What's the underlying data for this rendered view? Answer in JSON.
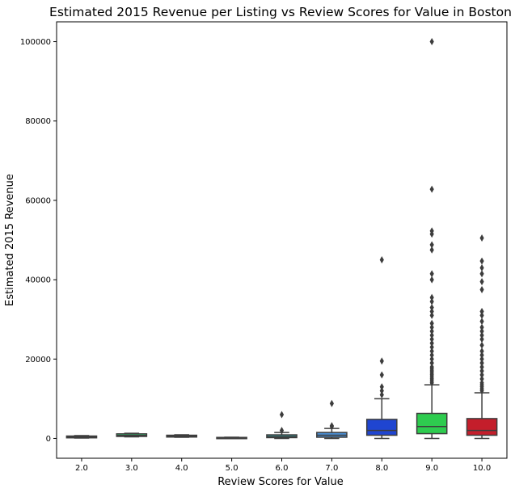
{
  "chart_data": {
    "type": "box",
    "title": "Estimated 2015 Revenue per Listing vs Review Scores for Value in Boston",
    "xlabel": "Review Scores for Value",
    "ylabel": "Estimated 2015 Revenue",
    "categories": [
      "2.0",
      "3.0",
      "4.0",
      "5.0",
      "6.0",
      "7.0",
      "8.0",
      "9.0",
      "10.0"
    ],
    "yticks": [
      0,
      20000,
      40000,
      60000,
      80000,
      100000
    ],
    "ylim": [
      -5000,
      105000
    ],
    "grid": false,
    "boxes": [
      {
        "category": "2.0",
        "q1": 150,
        "median": 350,
        "q3": 600,
        "whisker_low": 100,
        "whisker_high": 700,
        "color": "#3a86d1",
        "outliers": []
      },
      {
        "category": "3.0",
        "q1": 500,
        "median": 750,
        "q3": 1150,
        "whisker_low": 400,
        "whisker_high": 1300,
        "color": "#2ecc71",
        "outliers": []
      },
      {
        "category": "4.0",
        "q1": 350,
        "median": 550,
        "q3": 800,
        "whisker_low": 300,
        "whisker_high": 900,
        "color": "#3a86d1",
        "outliers": []
      },
      {
        "category": "5.0",
        "q1": 50,
        "median": 150,
        "q3": 250,
        "whisker_low": 0,
        "whisker_high": 300,
        "color": "#7f5c9a",
        "outliers": []
      },
      {
        "category": "6.0",
        "q1": 200,
        "median": 450,
        "q3": 900,
        "whisker_low": 0,
        "whisker_high": 1500,
        "color": "#2e9fa0",
        "outliers": [
          2000,
          6000
        ]
      },
      {
        "category": "7.0",
        "q1": 300,
        "median": 800,
        "q3": 1500,
        "whisker_low": 0,
        "whisker_high": 2500,
        "color": "#4a90d9",
        "outliers": [
          3000,
          3200,
          8800
        ]
      },
      {
        "category": "8.0",
        "q1": 800,
        "median": 2000,
        "q3": 4800,
        "whisker_low": 0,
        "whisker_high": 10000,
        "color": "#1f45d1",
        "outliers": [
          11000,
          12000,
          13000,
          16000,
          19500,
          45000
        ]
      },
      {
        "category": "9.0",
        "q1": 1200,
        "median": 3000,
        "q3": 6300,
        "whisker_low": 0,
        "whisker_high": 13500,
        "color": "#2ecc4f",
        "outliers": [
          14000,
          14500,
          15000,
          15500,
          16000,
          16500,
          17000,
          17500,
          18000,
          19000,
          20000,
          21000,
          22000,
          23000,
          24000,
          25000,
          26000,
          27000,
          28000,
          29000,
          31000,
          32000,
          33000,
          34500,
          35500,
          40000,
          41500,
          47500,
          48800,
          51500,
          52300,
          62800,
          100000
        ]
      },
      {
        "category": "10.0",
        "q1": 800,
        "median": 2000,
        "q3": 5000,
        "whisker_low": 0,
        "whisker_high": 11500,
        "color": "#c41e2b",
        "outliers": [
          12000,
          12500,
          13000,
          13500,
          14000,
          15000,
          16000,
          17000,
          18000,
          19000,
          20000,
          21000,
          22000,
          23500,
          25000,
          26000,
          27000,
          28000,
          29500,
          31000,
          32000,
          37500,
          39500,
          41500,
          43000,
          44700,
          50500
        ]
      }
    ]
  }
}
